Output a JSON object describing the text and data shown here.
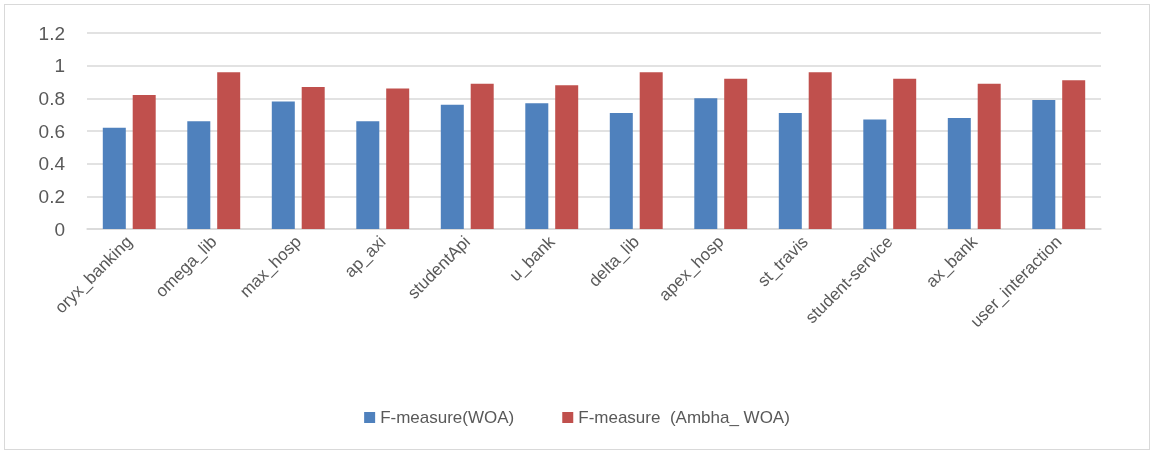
{
  "chart_data": {
    "type": "bar",
    "categories": [
      "oryx_banking",
      "omega_lib",
      "max_hosp",
      "ap_axi",
      "studentApi",
      "u_bank",
      "delta_lib",
      "apex_hosp",
      "st_travis",
      "student-service",
      "ax_bank",
      "user_interaction"
    ],
    "series": [
      {
        "name": "F-measure(WOA)",
        "color": "#4f81bd",
        "values": [
          0.62,
          0.66,
          0.78,
          0.66,
          0.76,
          0.77,
          0.71,
          0.8,
          0.71,
          0.67,
          0.68,
          0.79
        ]
      },
      {
        "name": "F-measure  (Ambha_ WOA)",
        "color": "#c0504d",
        "values": [
          0.82,
          0.96,
          0.87,
          0.86,
          0.89,
          0.88,
          0.96,
          0.92,
          0.96,
          0.92,
          0.89,
          0.91
        ]
      }
    ],
    "ylim": [
      0,
      1.2
    ],
    "yticks": [
      0,
      0.2,
      0.4,
      0.6,
      0.8,
      1,
      1.2
    ],
    "grid": "y",
    "legend": "bottom"
  }
}
